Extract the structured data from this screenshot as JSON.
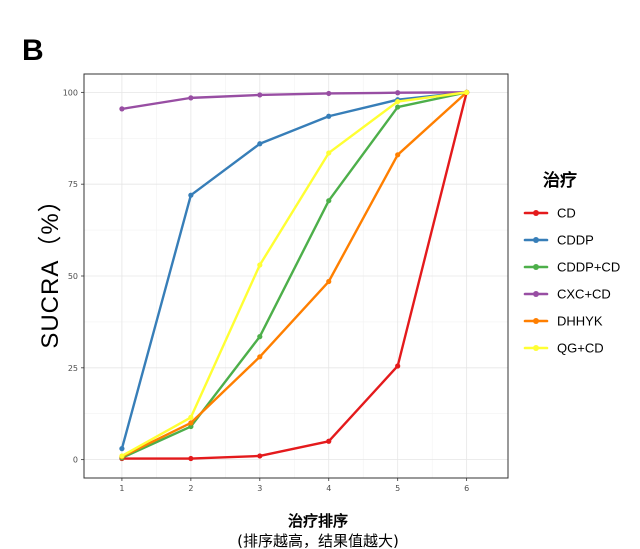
{
  "chart_data": {
    "type": "line",
    "panel_label": "B",
    "ylabel": "SUCRA（%）",
    "xlabel": "治疗排序",
    "xlabel_sub": "(排序越高，结果值越大)",
    "x": [
      1,
      2,
      3,
      4,
      5,
      6
    ],
    "xlim": [
      0.45,
      6.6
    ],
    "ylim": [
      -5,
      105
    ],
    "yticks": [
      0,
      25,
      50,
      75,
      100
    ],
    "grid": true,
    "legend_title": "治疗",
    "legend_position": "right",
    "series": [
      {
        "name": "CD",
        "color": "#E41A1C",
        "values": [
          0.3,
          0.3,
          1.0,
          5.0,
          25.5,
          100
        ]
      },
      {
        "name": "CDDP",
        "color": "#377EB8",
        "values": [
          3.0,
          72.0,
          86.0,
          93.5,
          98.0,
          100
        ]
      },
      {
        "name": "CDDP+CD",
        "color": "#4DAF4A",
        "values": [
          0.5,
          9.0,
          33.5,
          70.5,
          96.0,
          100
        ]
      },
      {
        "name": "CXC+CD",
        "color": "#984EA3",
        "values": [
          95.5,
          98.5,
          99.3,
          99.7,
          99.9,
          100
        ]
      },
      {
        "name": "DHHYK",
        "color": "#FF7F00",
        "values": [
          0.8,
          10.0,
          28.0,
          48.5,
          83.0,
          100
        ]
      },
      {
        "name": "QG+CD",
        "color": "#FFFF33",
        "values": [
          1.0,
          11.5,
          53.0,
          83.5,
          97.5,
          100
        ]
      }
    ]
  }
}
